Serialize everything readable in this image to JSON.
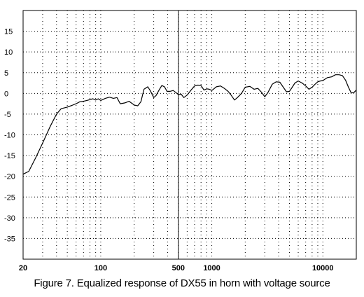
{
  "chart_data": {
    "type": "line",
    "title": "",
    "caption": "Figure 7.  Equalized response of DX55 in horn with voltage source",
    "xscale": "log",
    "xlim": [
      20,
      20000
    ],
    "ylim": [
      -40,
      20
    ],
    "grid": true,
    "x_tick_labels": [
      {
        "value": 20,
        "label": "20"
      },
      {
        "value": 100,
        "label": "100"
      },
      {
        "value": 500,
        "label": "500"
      },
      {
        "value": 1000,
        "label": "1000"
      },
      {
        "value": 10000,
        "label": "10000"
      }
    ],
    "y_tick_labels": [
      15,
      10,
      5,
      0,
      -5,
      -10,
      -15,
      -20,
      -25,
      -30,
      -35
    ],
    "marker_line_x": 500,
    "line_color": "#000000",
    "series": [
      {
        "points": [
          [
            20,
            -19.5
          ],
          [
            22.5,
            -18.8
          ],
          [
            26,
            -15.5
          ],
          [
            30,
            -12
          ],
          [
            35,
            -8
          ],
          [
            40,
            -5
          ],
          [
            44,
            -3.7
          ],
          [
            50,
            -3.3
          ],
          [
            55,
            -2.9
          ],
          [
            60,
            -2.5
          ],
          [
            65,
            -2.0
          ],
          [
            70,
            -1.9
          ],
          [
            75,
            -1.7
          ],
          [
            80,
            -1.5
          ],
          [
            85,
            -1.3
          ],
          [
            90,
            -1.6
          ],
          [
            95,
            -1.3
          ],
          [
            100,
            -1.7
          ],
          [
            110,
            -1.2
          ],
          [
            120,
            -0.9
          ],
          [
            130,
            -1.2
          ],
          [
            140,
            -1.0
          ],
          [
            150,
            -2.5
          ],
          [
            165,
            -2.3
          ],
          [
            180,
            -1.9
          ],
          [
            200,
            -2.8
          ],
          [
            215,
            -3.0
          ],
          [
            230,
            -2.0
          ],
          [
            245,
            1.0
          ],
          [
            265,
            1.6
          ],
          [
            280,
            0.6
          ],
          [
            300,
            -1.0
          ],
          [
            315,
            -0.5
          ],
          [
            335,
            0.8
          ],
          [
            355,
            1.9
          ],
          [
            375,
            1.6
          ],
          [
            395,
            0.5
          ],
          [
            420,
            0.5
          ],
          [
            450,
            0.7
          ],
          [
            480,
            0.1
          ],
          [
            500,
            -0.3
          ],
          [
            530,
            -0.2
          ],
          [
            560,
            -1.0
          ],
          [
            600,
            -0.4
          ],
          [
            650,
            0.8
          ],
          [
            700,
            1.8
          ],
          [
            750,
            2.0
          ],
          [
            800,
            1.9
          ],
          [
            850,
            0.8
          ],
          [
            900,
            1.1
          ],
          [
            950,
            1.0
          ],
          [
            1000,
            0.7
          ],
          [
            1100,
            1.6
          ],
          [
            1200,
            1.8
          ],
          [
            1300,
            1.2
          ],
          [
            1400,
            0.5
          ],
          [
            1500,
            -0.5
          ],
          [
            1600,
            -1.6
          ],
          [
            1700,
            -1.0
          ],
          [
            1850,
            0.0
          ],
          [
            2000,
            1.5
          ],
          [
            2200,
            1.7
          ],
          [
            2400,
            1.0
          ],
          [
            2600,
            1.2
          ],
          [
            2800,
            0.3
          ],
          [
            3000,
            -0.8
          ],
          [
            3200,
            0.2
          ],
          [
            3500,
            2.2
          ],
          [
            3800,
            2.8
          ],
          [
            4100,
            2.7
          ],
          [
            4400,
            1.5
          ],
          [
            4700,
            0.4
          ],
          [
            5000,
            0.5
          ],
          [
            5300,
            1.5
          ],
          [
            5600,
            2.5
          ],
          [
            6000,
            3.0
          ],
          [
            6500,
            2.5
          ],
          [
            7000,
            1.8
          ],
          [
            7500,
            1.0
          ],
          [
            8000,
            1.5
          ],
          [
            8500,
            2.2
          ],
          [
            9000,
            2.8
          ],
          [
            9500,
            3.0
          ],
          [
            10000,
            3.1
          ],
          [
            11000,
            3.8
          ],
          [
            12000,
            4.0
          ],
          [
            13000,
            4.5
          ],
          [
            14000,
            4.5
          ],
          [
            15000,
            4.3
          ],
          [
            16000,
            3.2
          ],
          [
            17000,
            1.5
          ],
          [
            18000,
            0.1
          ],
          [
            19000,
            0.2
          ],
          [
            20000,
            0.8
          ]
        ]
      }
    ]
  }
}
